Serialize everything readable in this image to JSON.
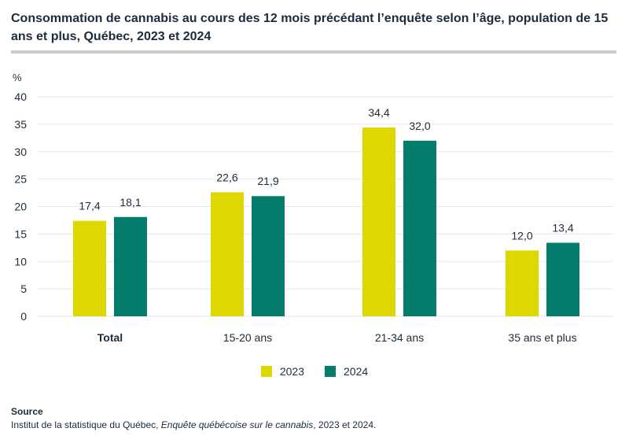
{
  "title": "Consommation de cannabis au cours des 12 mois précédant l’enquête selon l’âge, population de 15 ans et plus, Québec, 2023 et 2024",
  "colors": {
    "series_2023": "#dfd800",
    "series_2024": "#037c6c",
    "grid": "#e4e6e8"
  },
  "chart_data": {
    "type": "bar",
    "title": "Consommation de cannabis au cours des 12 mois précédant l’enquête selon l’âge, population de 15 ans et plus, Québec, 2023 et 2024",
    "ylabel": "%",
    "xlabel": "",
    "ylim": [
      0,
      40
    ],
    "yticks": [
      0,
      5,
      10,
      15,
      20,
      25,
      30,
      35,
      40
    ],
    "categories": [
      "Total",
      "15-20 ans",
      "21-34 ans",
      "35 ans et plus"
    ],
    "series": [
      {
        "name": "2023",
        "values": [
          17.4,
          22.6,
          34.4,
          12.0
        ],
        "labels": [
          "17,4",
          "22,6",
          "34,4",
          "12,0"
        ]
      },
      {
        "name": "2024",
        "values": [
          18.1,
          21.9,
          32.0,
          13.4
        ],
        "labels": [
          "18,1",
          "21,9",
          "32,0",
          "13,4"
        ]
      }
    ],
    "legend": "bottom-center"
  },
  "source": {
    "heading": "Source",
    "text_prefix": "Institut de la statistique du Québec, ",
    "text_italic": "Enquête québécoise sur le cannabis",
    "text_suffix": ", 2023 et 2024."
  }
}
